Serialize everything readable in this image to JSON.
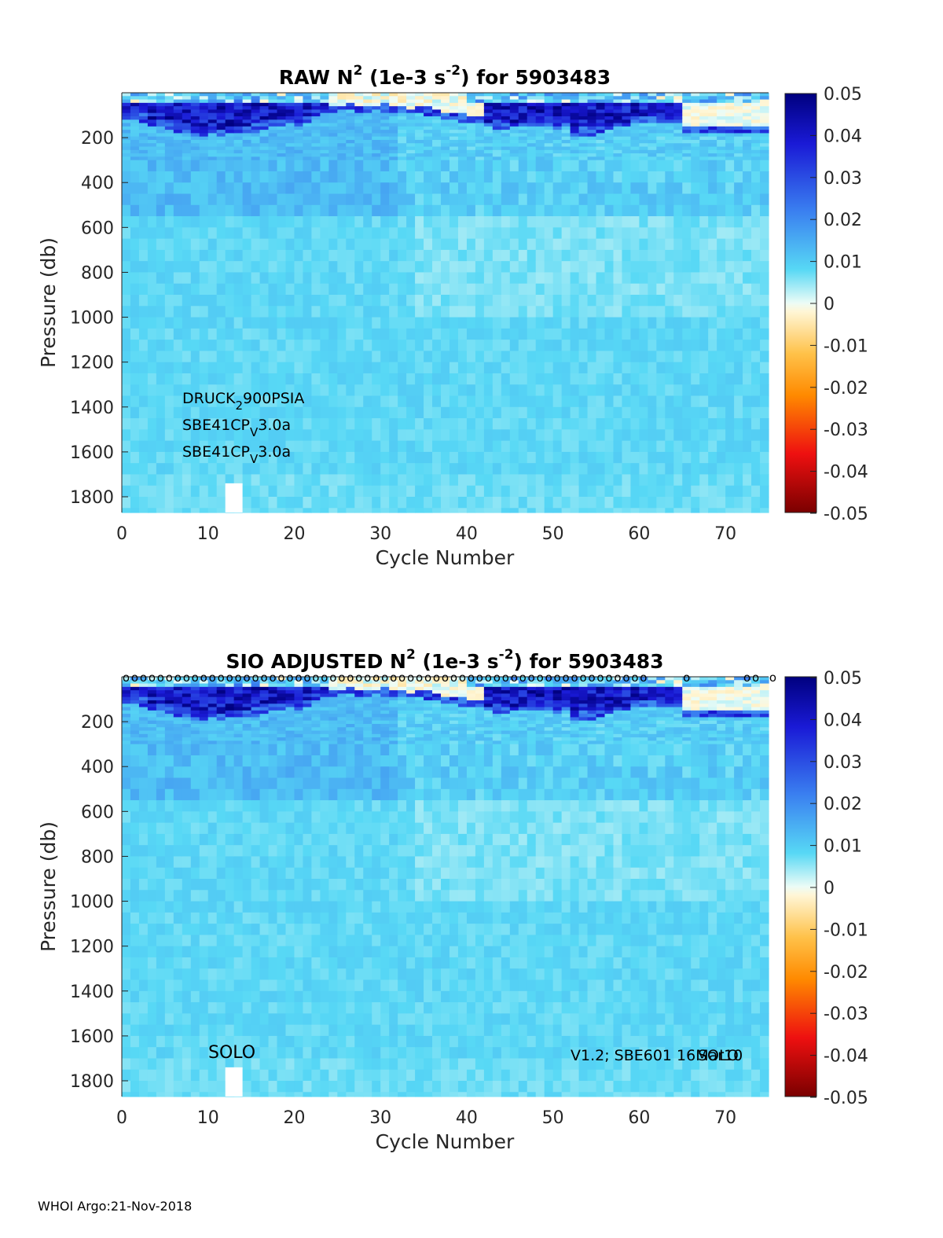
{
  "chart_data": [
    {
      "type": "heatmap",
      "title_main": "RAW N",
      "title_sup1": "2",
      "title_mid": " (1e-3 s",
      "title_sup2": "-2",
      "title_end": ") for 5903483",
      "xlabel": "Cycle Number",
      "ylabel": "Pressure (db)",
      "xlim": [
        0,
        75
      ],
      "ylim": [
        1870,
        0
      ],
      "xticks": [
        "0",
        "10",
        "20",
        "30",
        "40",
        "50",
        "60",
        "70"
      ],
      "yticks": [
        "200",
        "400",
        "600",
        "800",
        "1000",
        "1200",
        "1400",
        "1600",
        "1800"
      ],
      "colorbar_ticks": [
        "0.05",
        "0.04",
        "0.03",
        "0.02",
        "0.01",
        "0",
        "-0.01",
        "-0.02",
        "-0.03",
        "-0.04",
        "-0.05"
      ],
      "clim": [
        -0.05,
        0.05
      ],
      "annotation_lines": [
        {
          "base": "DRUCK",
          "sub": "2",
          "rest": "900PSIA"
        },
        {
          "base": "SBE41CP",
          "sub": "V",
          "rest": "3.0a"
        },
        {
          "base": "SBE41CP",
          "sub": "V",
          "rest": "3.0a"
        }
      ],
      "missing_profile_cycle": 13
    },
    {
      "type": "heatmap",
      "title_main": "SIO  ADJUSTED N",
      "title_sup1": "2",
      "title_mid": " (1e-3 s",
      "title_sup2": "-2",
      "title_end": ") for 5903483",
      "xlabel": "Cycle Number",
      "ylabel": "Pressure (db)",
      "xlim": [
        0,
        75
      ],
      "ylim": [
        1870,
        0
      ],
      "xticks": [
        "0",
        "10",
        "20",
        "30",
        "40",
        "50",
        "60",
        "70"
      ],
      "yticks": [
        "200",
        "400",
        "600",
        "800",
        "1000",
        "1200",
        "1400",
        "1600",
        "1800"
      ],
      "colorbar_ticks": [
        "0.05",
        "0.04",
        "0.03",
        "0.02",
        "0.01",
        "0",
        "-0.01",
        "-0.02",
        "-0.03",
        "-0.04",
        "-0.05"
      ],
      "clim": [
        -0.05,
        0.05
      ],
      "surface_marker_cycles": [
        1,
        2,
        3,
        4,
        5,
        6,
        7,
        8,
        9,
        10,
        11,
        12,
        13,
        14,
        15,
        16,
        17,
        18,
        19,
        20,
        21,
        22,
        23,
        24,
        25,
        26,
        27,
        28,
        29,
        30,
        31,
        32,
        33,
        34,
        35,
        36,
        37,
        38,
        39,
        40,
        41,
        42,
        43,
        44,
        45,
        46,
        47,
        48,
        49,
        50,
        51,
        52,
        53,
        54,
        55,
        56,
        57,
        58,
        59,
        60,
        61,
        66,
        73,
        74,
        76
      ],
      "marker_glyph": "o",
      "annotation_left": "SOLO",
      "annotation_right_1": "V1.2; SBE601 16Mar10",
      "annotation_right_2": "SOLO",
      "missing_profile_cycle": 13
    }
  ],
  "footer": "WHOI Argo:21-Nov-2018",
  "colors": {
    "background_field": "#aef4ef",
    "strong_positive": "#0a0a8c",
    "zero": "#fff7dc"
  }
}
